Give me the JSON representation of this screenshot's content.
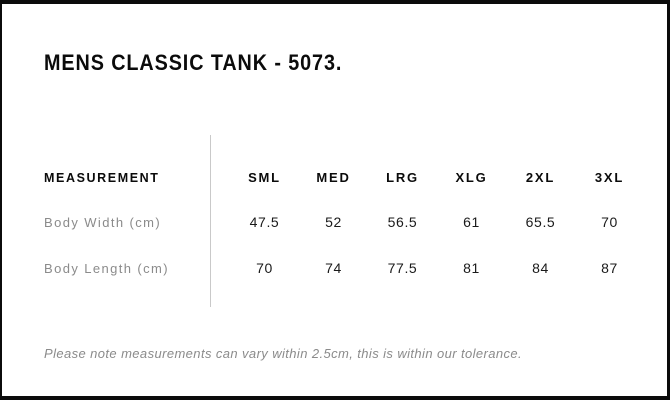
{
  "page": {
    "title": "MENS CLASSIC TANK - 5073.",
    "note": "Please note measurements can vary within 2.5cm, this is within our tolerance."
  },
  "size_chart": {
    "header": {
      "measurement_label": "MEASUREMENT",
      "sizes": [
        "SML",
        "MED",
        "LRG",
        "XLG",
        "2XL",
        "3XL"
      ]
    },
    "rows": [
      {
        "label": "Body Width (cm)",
        "values": [
          "47.5",
          "52",
          "56.5",
          "61",
          "65.5",
          "70"
        ]
      },
      {
        "label": "Body Length (cm)",
        "values": [
          "70",
          "74",
          "77.5",
          "81",
          "84",
          "87"
        ]
      }
    ]
  },
  "colors": {
    "text": "#0b0b0b",
    "muted": "#8b8b8b",
    "divider": "#c9c9c9",
    "frame": "#0b0b0b",
    "bg": "#ffffff"
  }
}
